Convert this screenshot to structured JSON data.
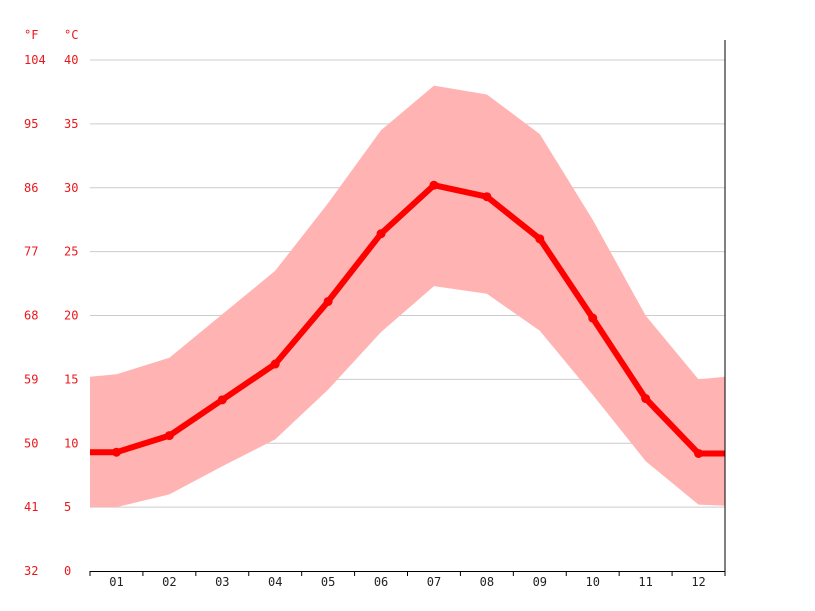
{
  "chart_data": {
    "type": "line",
    "title": "",
    "units": {
      "fahrenheit": "°F",
      "celsius": "°C"
    },
    "categories": [
      "01",
      "02",
      "03",
      "04",
      "05",
      "06",
      "07",
      "08",
      "09",
      "10",
      "11",
      "12"
    ],
    "y_ticks_c": [
      "0",
      "5",
      "10",
      "15",
      "20",
      "25",
      "30",
      "35",
      "40"
    ],
    "y_ticks_f": [
      "32",
      "41",
      "50",
      "59",
      "68",
      "77",
      "86",
      "95",
      "104"
    ],
    "ylim": [
      0,
      40
    ],
    "grid": true,
    "series": [
      {
        "role": "mean",
        "values": [
          9.3,
          10.6,
          13.4,
          16.2,
          21.1,
          26.4,
          30.2,
          29.3,
          26.0,
          19.8,
          13.5,
          9.2
        ],
        "color": "#ff0000"
      },
      {
        "role": "max",
        "values": [
          15.4,
          16.7,
          20.1,
          23.5,
          28.8,
          34.5,
          38.0,
          37.3,
          34.2,
          27.5,
          20.0,
          15.0
        ],
        "color": "#ffb3b3"
      },
      {
        "role": "min",
        "values": [
          5.0,
          6.0,
          8.2,
          10.3,
          14.2,
          18.7,
          22.3,
          21.7,
          18.8,
          13.8,
          8.6,
          5.2
        ],
        "color": "#ffb3b3"
      }
    ],
    "band_edge_values": {
      "left_max": 15.2,
      "left_min": 5.0,
      "right_max": 15.2,
      "right_min": 5.1
    },
    "colors": {
      "line": "#ff0000",
      "band": "#ffb3b3",
      "grid": "#cccccc",
      "tick_left": "#e8191c",
      "tick_x": "#222222",
      "axis": "#000000"
    }
  }
}
